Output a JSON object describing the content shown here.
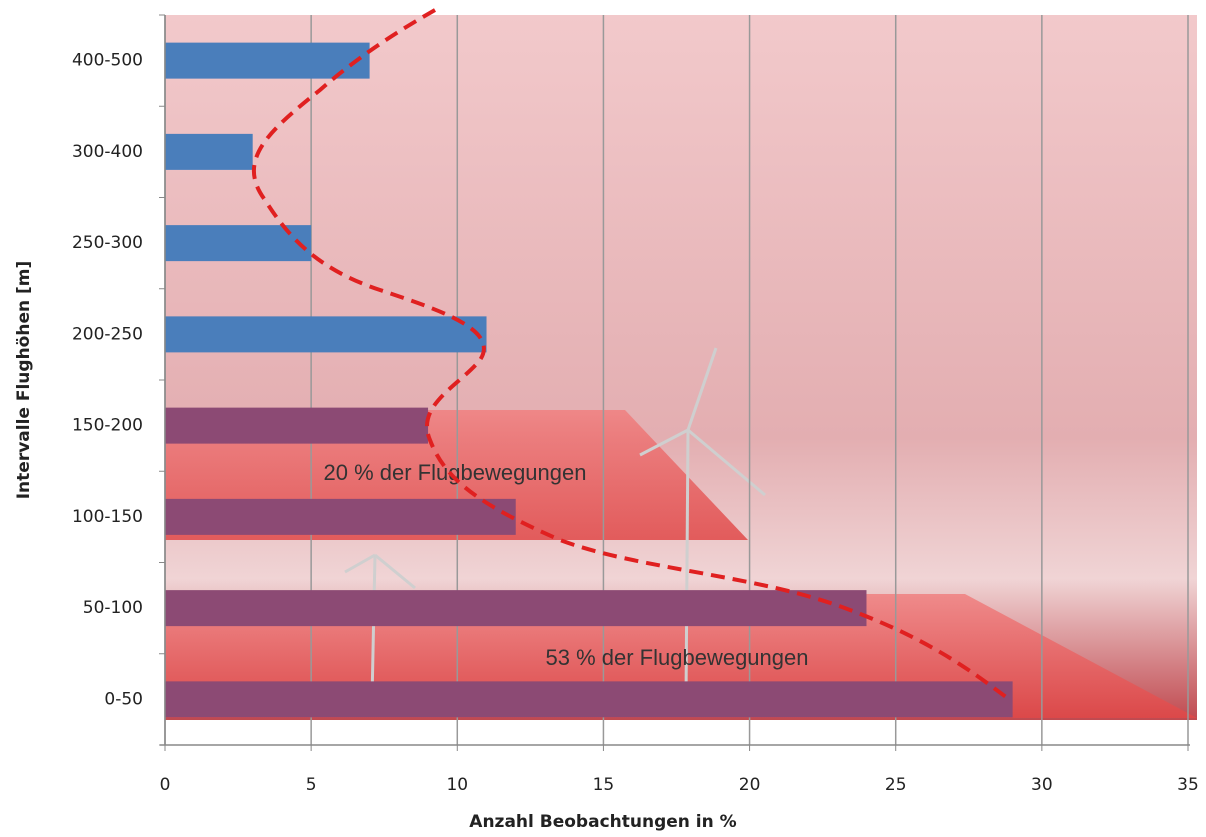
{
  "chart_data": {
    "type": "bar",
    "orientation": "horizontal",
    "categories": [
      "400-500",
      "300-400",
      "250-300",
      "200-250",
      "150-200",
      "100-150",
      "50-100",
      "0-50"
    ],
    "values": [
      7,
      3,
      5,
      11,
      9,
      12,
      24,
      29
    ],
    "colors": [
      "#4a7ebb",
      "#4a7ebb",
      "#4a7ebb",
      "#4a7ebb",
      "#8c4a74",
      "#8c4a74",
      "#8c4a74",
      "#8c4a74"
    ],
    "xlabel": "Anzahl Beobachtungen in %",
    "ylabel": "Intervalle Flughöhen [m]",
    "xlim": [
      0,
      35
    ],
    "xticks": [
      0,
      5,
      10,
      15,
      20,
      25,
      30,
      35
    ],
    "grid": true,
    "annotations": [
      "20 % der Flugbewegungen",
      "53 % der Flugbewegungen"
    ]
  }
}
